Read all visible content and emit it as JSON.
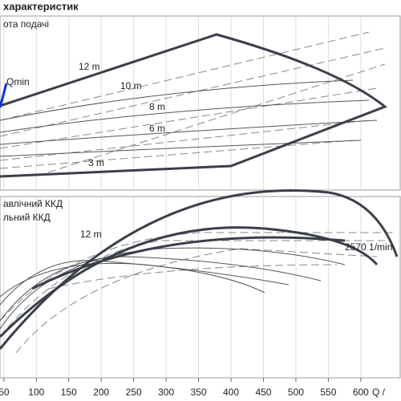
{
  "chart_data": {
    "type": "line",
    "title": "характеристик",
    "panels": [
      {
        "label": "ота подачі",
        "annotations": [
          "Qmin",
          "12 m",
          "10 m",
          "8 m",
          "6 m",
          "3 m"
        ]
      },
      {
        "labels": [
          "авлічний ККД",
          "льний ККД"
        ],
        "annotations": [
          "12 m",
          "2570 1/min"
        ]
      }
    ],
    "xlabel": "Q /",
    "xlim": [
      44,
      662
    ],
    "xticks": [
      50,
      100,
      150,
      200,
      250,
      300,
      350,
      400,
      450,
      500,
      550,
      600
    ],
    "grid": true
  }
}
